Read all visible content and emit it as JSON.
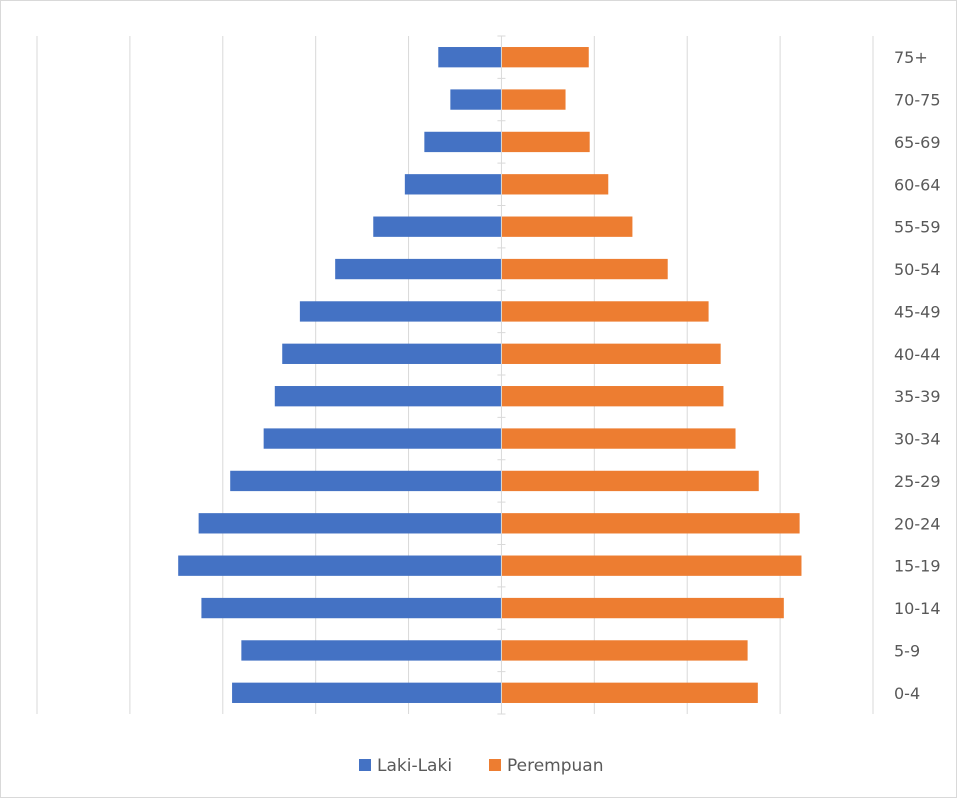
{
  "chart_data": {
    "type": "bar",
    "orientation": "horizontal",
    "layout": "population-pyramid",
    "categories": [
      "0-4",
      "5-9",
      "10-14",
      "15-19",
      "20-24",
      "25-29",
      "30-34",
      "35-39",
      "40-44",
      "45-49",
      "50-54",
      "55-59",
      "60-64",
      "65-69",
      "70-75",
      "75+"
    ],
    "series": [
      {
        "name": "Laki-Laki",
        "color": "#4472c4",
        "side": "left",
        "values": [
          2900,
          2800,
          3230,
          3480,
          3260,
          2920,
          2560,
          2440,
          2360,
          2170,
          1790,
          1380,
          1040,
          830,
          550,
          680
        ]
      },
      {
        "name": "Perempuan",
        "color": "#ed7d31",
        "side": "right",
        "values": [
          2760,
          2650,
          3040,
          3230,
          3210,
          2770,
          2520,
          2390,
          2360,
          2230,
          1790,
          1410,
          1150,
          950,
          690,
          940
        ]
      }
    ],
    "xlim": [
      -5000,
      4000
    ],
    "x_gridline_step": 1000,
    "x_tick_labels_shown": false,
    "category_labels_side": "right",
    "grid": "vertical",
    "legend_position": "bottom"
  }
}
